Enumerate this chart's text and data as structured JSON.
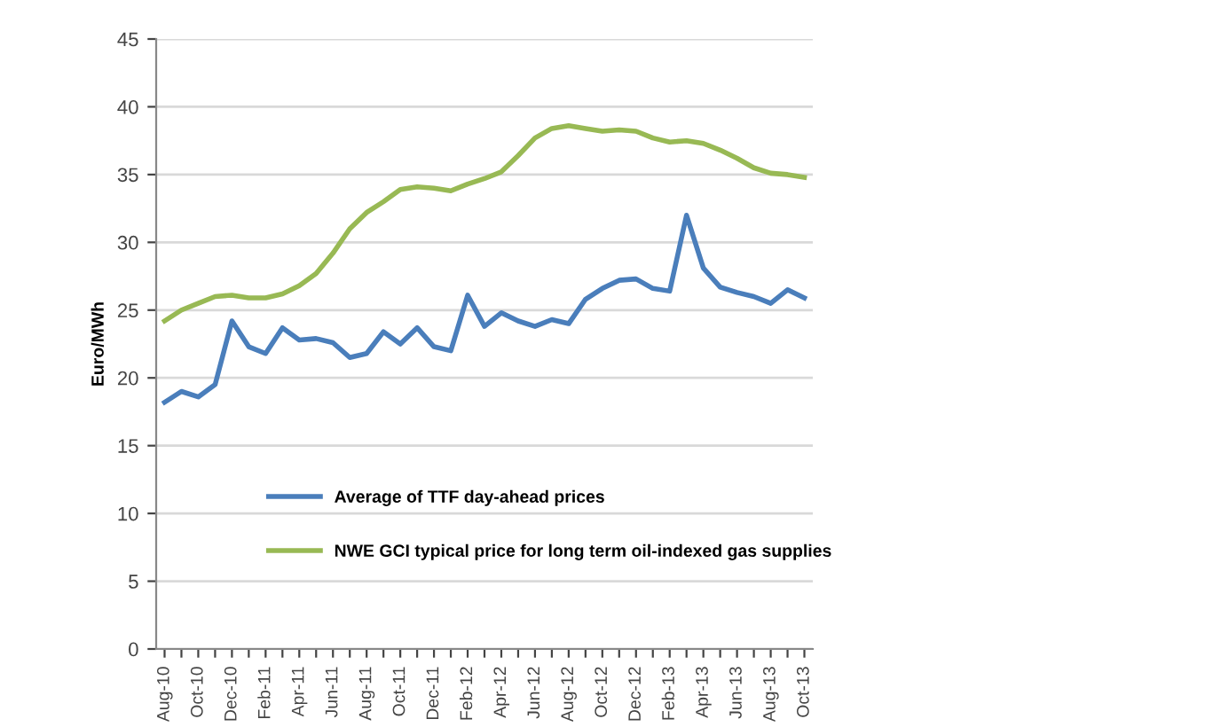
{
  "chart_data": {
    "type": "line",
    "ylabel": "Euro/MWh",
    "categories": [
      "Aug-10",
      null,
      "Oct-10",
      null,
      "Dec-10",
      null,
      "Feb-11",
      null,
      "Apr-11",
      null,
      "Jun-11",
      null,
      "Aug-11",
      null,
      "Oct-11",
      null,
      "Dec-11",
      null,
      "Feb-12",
      null,
      "Apr-12",
      null,
      "Jun-12",
      null,
      "Aug-12",
      null,
      "Oct-12",
      null,
      "Dec-12",
      null,
      "Feb-13",
      null,
      "Apr-13",
      null,
      "Jun-13",
      null,
      "Aug-13",
      null,
      "Oct-13"
    ],
    "series": [
      {
        "name": "Average of TTF day-ahead prices",
        "color": "#4a7ebb",
        "values": [
          18.2,
          19.0,
          18.6,
          19.5,
          24.2,
          22.3,
          21.8,
          23.7,
          22.8,
          22.9,
          22.6,
          21.5,
          21.8,
          23.4,
          22.5,
          23.7,
          22.3,
          22.0,
          26.1,
          23.8,
          24.8,
          24.2,
          23.8,
          24.3,
          24.0,
          25.8,
          26.6,
          27.2,
          27.3,
          26.6,
          26.4,
          32.0,
          28.1,
          26.7,
          26.3,
          26.0,
          25.5,
          26.5,
          25.9
        ]
      },
      {
        "name": "NWE GCI typical price for long term oil-indexed gas supplies",
        "color": "#98b954",
        "values": [
          24.2,
          25.0,
          25.5,
          26.0,
          26.1,
          25.9,
          25.9,
          26.2,
          26.8,
          27.7,
          29.2,
          31.0,
          32.2,
          33.0,
          33.9,
          34.1,
          34.0,
          33.8,
          34.3,
          34.7,
          35.2,
          36.4,
          37.7,
          38.4,
          38.6,
          38.4,
          38.2,
          38.3,
          38.2,
          37.7,
          37.4,
          37.5,
          37.3,
          36.8,
          36.2,
          35.5,
          35.1,
          35.0,
          34.8
        ]
      }
    ],
    "ylim": [
      0,
      45
    ],
    "yticks": [
      0,
      5,
      10,
      15,
      20,
      25,
      30,
      35,
      40,
      45
    ],
    "grid": "y",
    "legend": "bottom",
    "marker": "none",
    "line_style": "solid"
  }
}
